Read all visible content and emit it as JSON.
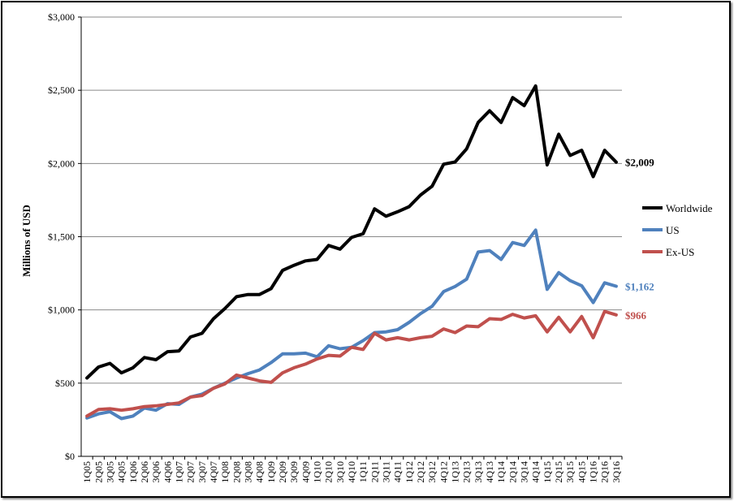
{
  "chart_data": {
    "type": "line",
    "title": "",
    "xlabel": "",
    "ylabel": "Millions of USD",
    "ylim": [
      0,
      3000
    ],
    "yticks": [
      0,
      500,
      1000,
      1500,
      2000,
      2500,
      3000
    ],
    "ytick_labels": [
      "$0",
      "$500",
      "$1,000",
      "$1,500",
      "$2,000",
      "$2,500",
      "$3,000"
    ],
    "grid": "horizontal",
    "legend_position": "right",
    "categories": [
      "1Q05",
      "2Q05",
      "3Q05",
      "4Q05",
      "1Q06",
      "2Q06",
      "3Q06",
      "4Q06",
      "1Q07",
      "2Q07",
      "3Q07",
      "4Q07",
      "1Q08",
      "2Q08",
      "3Q08",
      "4Q08",
      "1Q09",
      "2Q09",
      "3Q09",
      "4Q09",
      "1Q10",
      "2Q10",
      "3Q10",
      "4Q10",
      "1Q11",
      "2Q11",
      "3Q11",
      "4Q11",
      "1Q12",
      "2Q12",
      "3Q12",
      "4Q12",
      "1Q13",
      "2Q13",
      "3Q13",
      "4Q13",
      "1Q14",
      "2Q14",
      "3Q14",
      "4Q14",
      "1Q15",
      "2Q15",
      "3Q15",
      "4Q15",
      "1Q16",
      "2Q16",
      "3Q16"
    ],
    "series": [
      {
        "name": "Worldwide",
        "color": "#000000",
        "end_label": "$2,009",
        "values": [
          535,
          610,
          635,
          570,
          605,
          675,
          660,
          715,
          720,
          815,
          840,
          940,
          1010,
          1090,
          1105,
          1105,
          1145,
          1270,
          1305,
          1335,
          1345,
          1440,
          1415,
          1495,
          1520,
          1690,
          1640,
          1670,
          1705,
          1785,
          1845,
          1995,
          2010,
          2100,
          2280,
          2360,
          2280,
          2450,
          2395,
          2530,
          1990,
          2200,
          2055,
          2090,
          1910,
          2090,
          2009
        ]
      },
      {
        "name": "US",
        "color": "#4f81bd",
        "end_label": "$1,162",
        "values": [
          262,
          290,
          305,
          258,
          275,
          330,
          315,
          360,
          355,
          405,
          425,
          465,
          500,
          535,
          565,
          590,
          640,
          700,
          700,
          705,
          680,
          755,
          735,
          745,
          790,
          845,
          850,
          865,
          915,
          975,
          1025,
          1125,
          1160,
          1210,
          1395,
          1405,
          1345,
          1460,
          1440,
          1545,
          1140,
          1255,
          1200,
          1165,
          1050,
          1185,
          1162
        ]
      },
      {
        "name": "Ex-US",
        "color": "#c0504d",
        "end_label": "$966",
        "values": [
          275,
          320,
          325,
          315,
          325,
          340,
          345,
          355,
          365,
          405,
          415,
          465,
          495,
          555,
          535,
          515,
          505,
          570,
          605,
          630,
          665,
          690,
          685,
          745,
          730,
          840,
          795,
          810,
          795,
          810,
          820,
          870,
          845,
          890,
          885,
          940,
          935,
          970,
          945,
          960,
          850,
          950,
          850,
          955,
          810,
          990,
          966
        ]
      }
    ]
  }
}
